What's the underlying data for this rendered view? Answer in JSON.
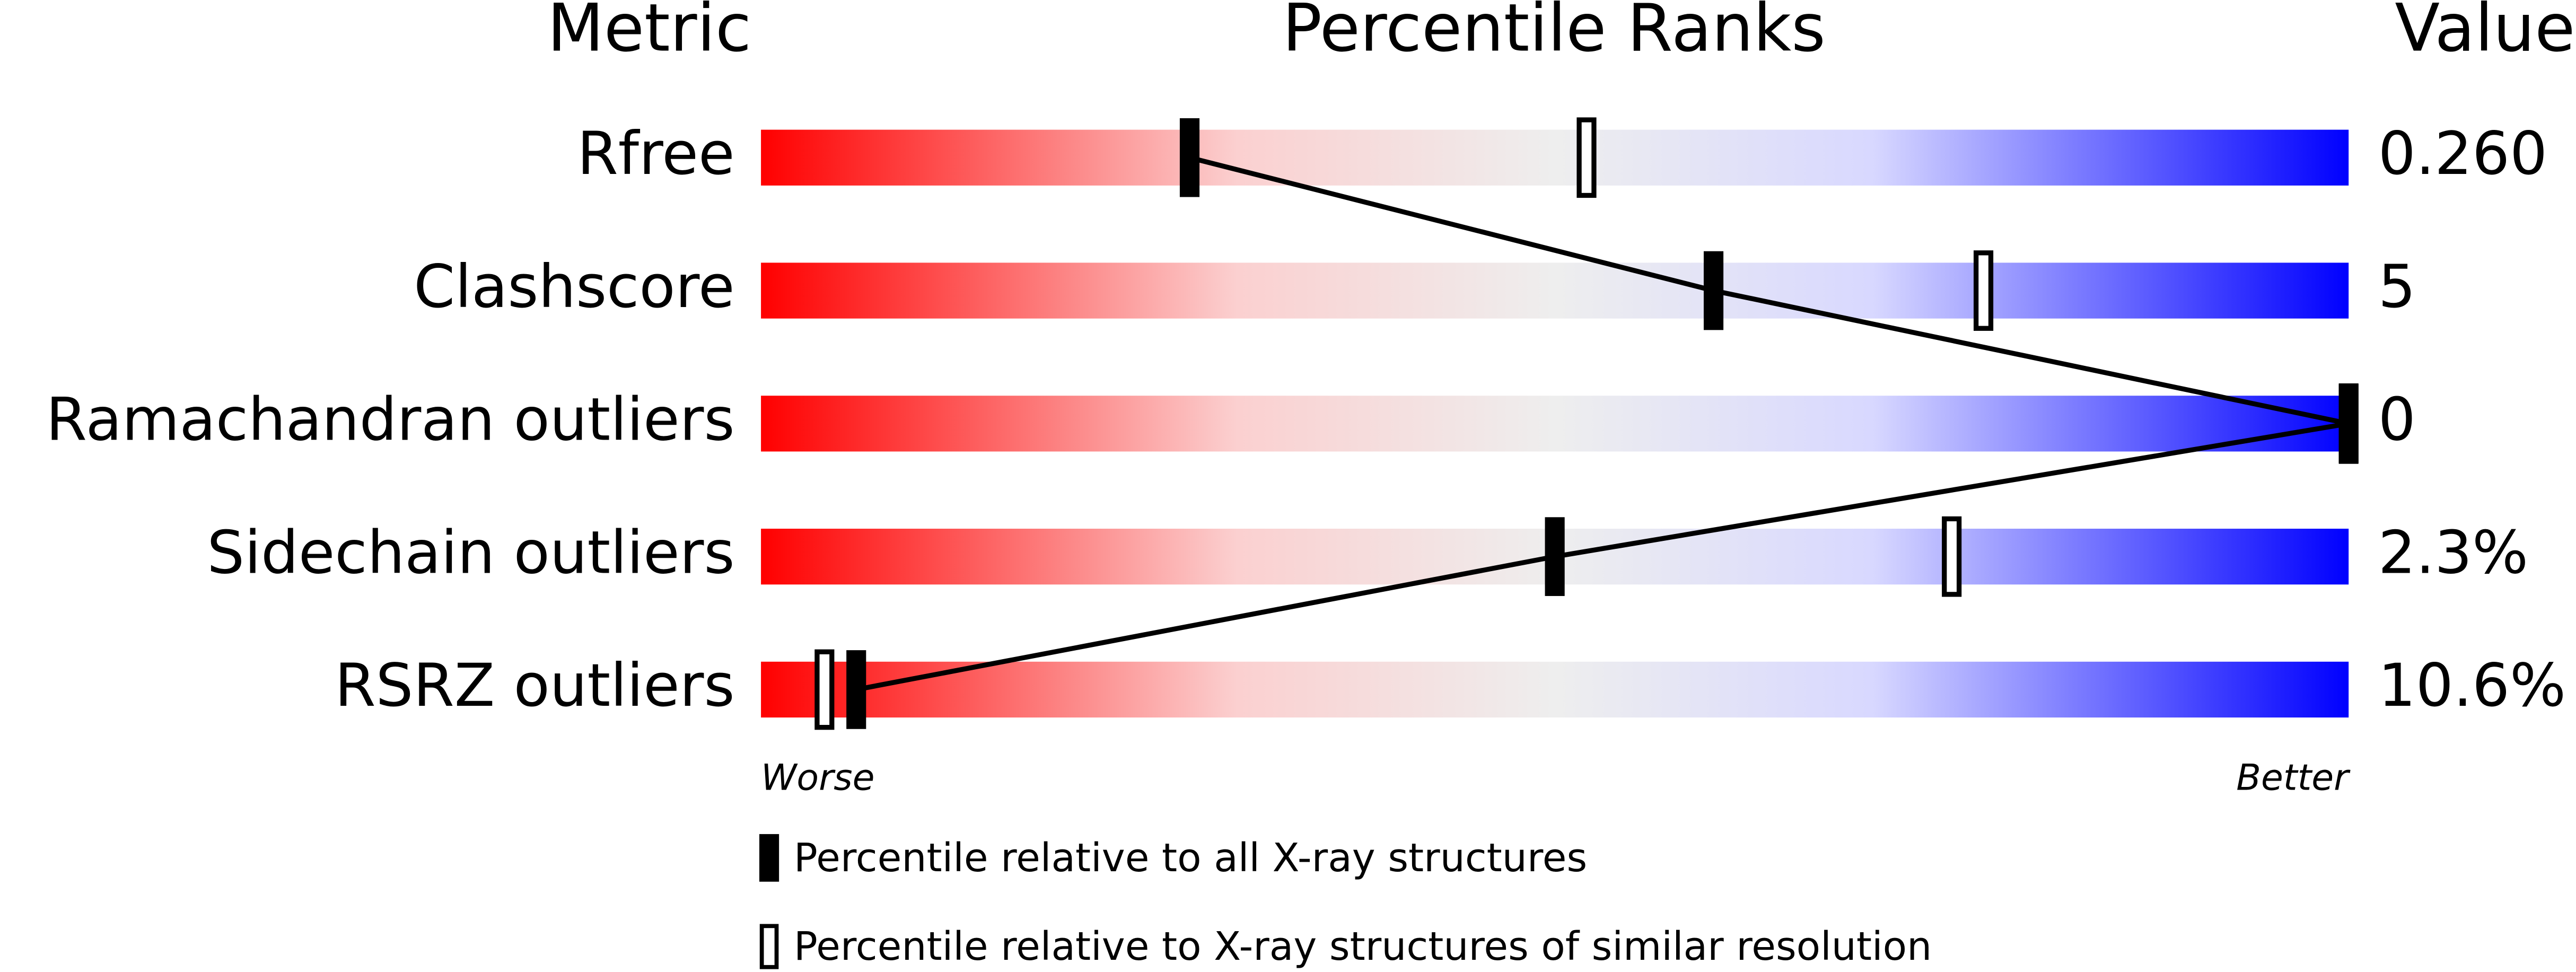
{
  "chart_data": {
    "type": "percentile",
    "headers": {
      "metric": "Metric",
      "ranks": "Percentile Ranks",
      "value": "Value"
    },
    "categories": [
      "Rfree",
      "Clashscore",
      "Ramachandran outliers",
      "Sidechain outliers",
      "RSRZ outliers"
    ],
    "series": [
      {
        "name": "Percentile relative to all X-ray structures",
        "color": "#000000",
        "style": "filled",
        "values": [
          27,
          60,
          100,
          50,
          6
        ]
      },
      {
        "name": "Percentile relative to X-ray structures of similar resolution",
        "color": "#000000",
        "style": "open",
        "values": [
          52,
          77,
          100,
          75,
          4
        ]
      }
    ],
    "metric_values": [
      "0.260",
      "5",
      "0",
      "2.3%",
      "10.6%"
    ],
    "xlim": [
      0,
      100
    ],
    "worse_label": "Worse",
    "better_label": "Better"
  }
}
